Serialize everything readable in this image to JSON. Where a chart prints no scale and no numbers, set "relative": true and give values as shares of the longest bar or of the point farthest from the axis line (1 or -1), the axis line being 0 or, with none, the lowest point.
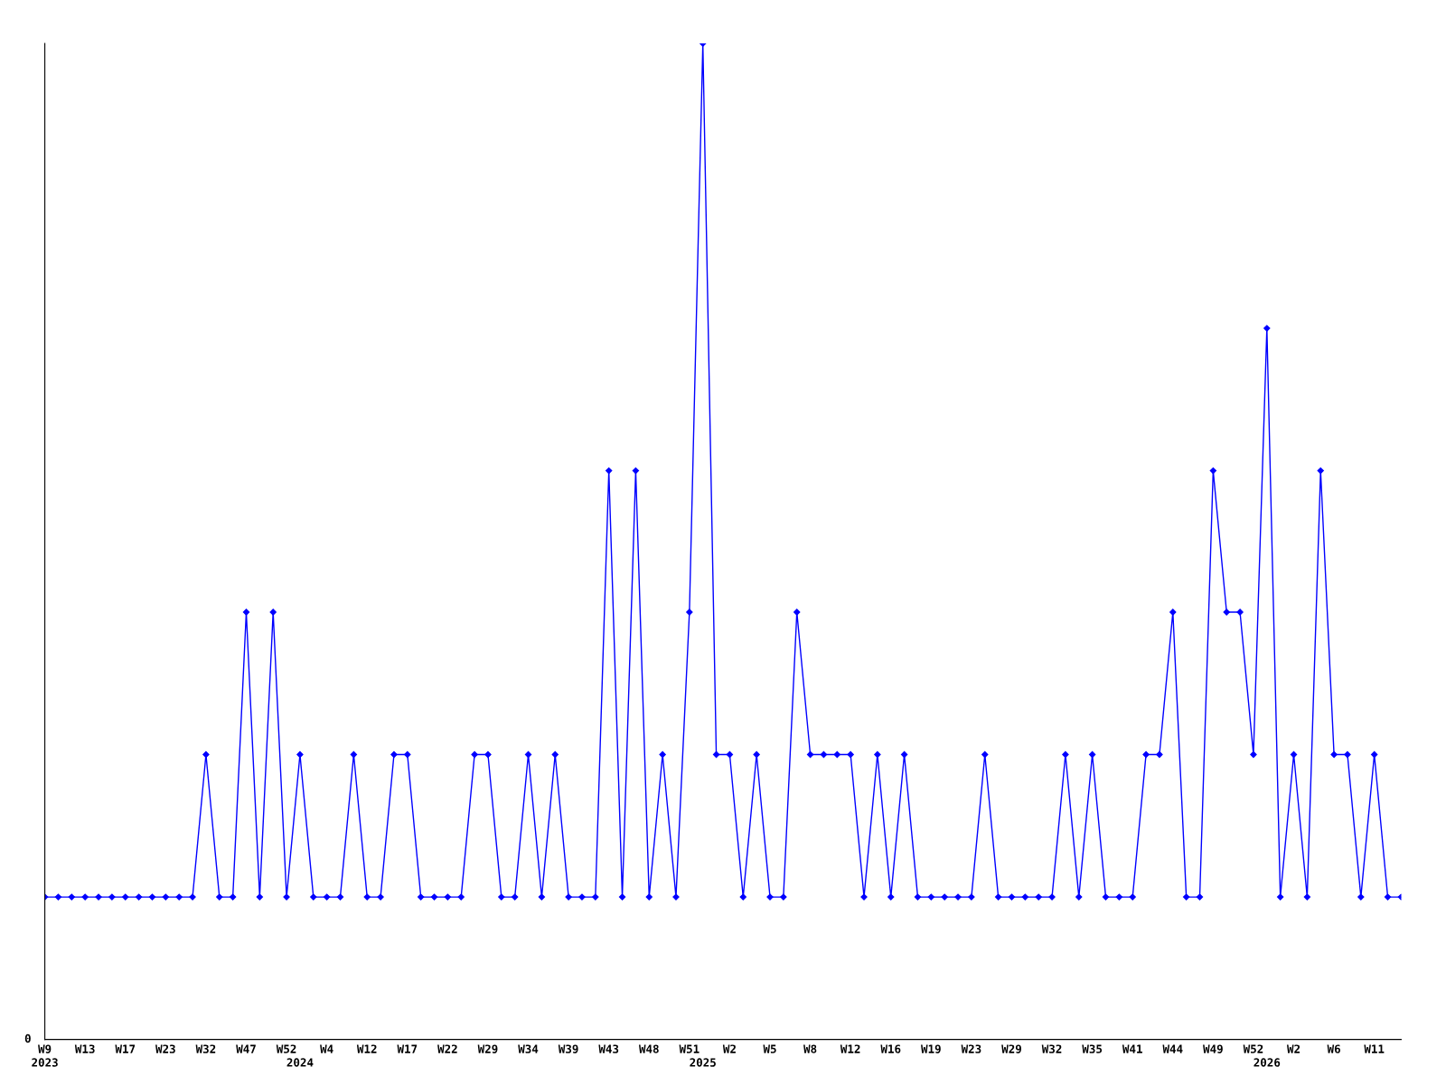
{
  "chart_data": {
    "type": "line",
    "relative": true,
    "color": "#0000ff",
    "marker": "diamond",
    "line_style": "solid",
    "grid": false,
    "legend": false,
    "annotations": [
      "0"
    ],
    "categories": [
      "W9\n2023",
      null,
      null,
      "W13",
      null,
      null,
      "W17",
      null,
      null,
      "W23",
      null,
      null,
      "W32",
      null,
      null,
      "W47",
      null,
      null,
      "W52",
      "\n2024",
      null,
      "W4",
      null,
      null,
      "W12",
      null,
      null,
      "W17",
      null,
      null,
      "W22",
      null,
      null,
      "W29",
      null,
      null,
      "W34",
      null,
      null,
      "W39",
      null,
      null,
      "W43",
      null,
      null,
      "W48",
      null,
      null,
      "W51",
      "\n2025",
      null,
      "W2",
      null,
      null,
      "W5",
      null,
      null,
      "W8",
      null,
      null,
      "W12",
      null,
      null,
      "W16",
      null,
      null,
      "W19",
      null,
      null,
      "W23",
      null,
      null,
      "W29",
      null,
      null,
      "W32",
      null,
      null,
      "W35",
      null,
      null,
      "W41",
      null,
      null,
      "W44",
      null,
      null,
      "W49",
      null,
      null,
      "W52",
      "\n2026",
      null,
      "W2",
      null,
      null,
      "W6",
      null,
      null,
      "W11",
      null,
      null
    ],
    "values": [
      0.143,
      0.143,
      0.143,
      0.143,
      0.143,
      0.143,
      0.143,
      0.143,
      0.143,
      0.143,
      0.143,
      0.143,
      0.286,
      0.143,
      0.143,
      0.429,
      0.143,
      0.429,
      0.143,
      0.286,
      0.143,
      0.143,
      0.143,
      0.286,
      0.143,
      0.143,
      0.286,
      0.286,
      0.143,
      0.143,
      0.143,
      0.143,
      0.286,
      0.286,
      0.143,
      0.143,
      0.286,
      0.143,
      0.286,
      0.143,
      0.143,
      0.143,
      0.571,
      0.143,
      0.571,
      0.143,
      0.286,
      0.143,
      0.429,
      1,
      0.286,
      0.286,
      0.143,
      0.286,
      0.143,
      0.143,
      0.429,
      0.286,
      0.286,
      0.286,
      0.286,
      0.143,
      0.286,
      0.143,
      0.286,
      0.143,
      0.143,
      0.143,
      0.143,
      0.143,
      0.286,
      0.143,
      0.143,
      0.143,
      0.143,
      0.143,
      0.286,
      0.143,
      0.286,
      0.143,
      0.143,
      0.143,
      0.286,
      0.286,
      0.429,
      0.143,
      0.143,
      0.571,
      0.429,
      0.429,
      0.286,
      0.714,
      0.143,
      0.286,
      0.143,
      0.571,
      0.286,
      0.286,
      0.143,
      0.286,
      0.143,
      0.143
    ]
  }
}
